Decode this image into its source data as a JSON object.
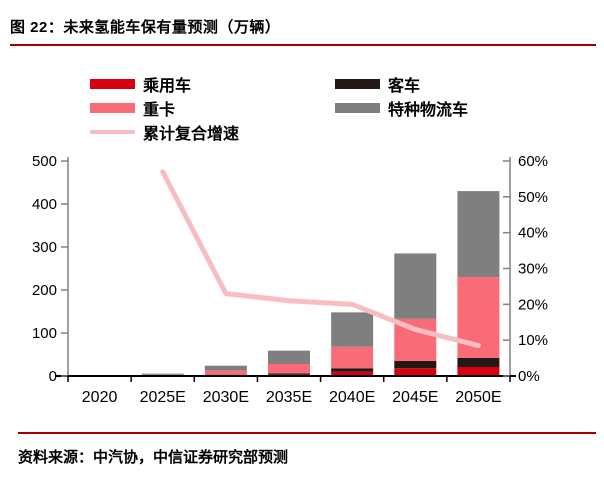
{
  "title": "图 22：未来氢能车保有量预测（万辆）",
  "source": "资料来源：中汽协，中信证券研究部预测",
  "colors": {
    "accent_rule": "#a40000",
    "passenger_car": "#d7000f",
    "bus": "#231815",
    "heavy_truck": "#f96c77",
    "special_logistics": "#7f7f7f",
    "cagr_line": "#f8bdc0",
    "axis_gray": "#808080",
    "axis_black": "#000000"
  },
  "legend": [
    {
      "label": "乘用车",
      "color": "#d7000f",
      "shape": "bar",
      "column": 0
    },
    {
      "label": "客车",
      "color": "#231815",
      "shape": "bar",
      "column": 1
    },
    {
      "label": "重卡",
      "color": "#f96c77",
      "shape": "bar",
      "column": 0
    },
    {
      "label": "特种物流车",
      "color": "#7f7f7f",
      "shape": "bar",
      "column": 1
    },
    {
      "label": "累计复合增速",
      "color": "#f8bdc0",
      "shape": "line",
      "column": 0
    }
  ],
  "chart_data": {
    "type": "bar",
    "subtype": "stacked-bar-with-line",
    "title": "未来氢能车保有量预测（万辆）",
    "categories": [
      "2020",
      "2025E",
      "2030E",
      "2035E",
      "2040E",
      "2045E",
      "2050E"
    ],
    "series": [
      {
        "name": "乘用车",
        "type": "bar",
        "axis": "left",
        "color": "#d7000f",
        "values": [
          0.1,
          0.5,
          1.5,
          3,
          10,
          18,
          21
        ]
      },
      {
        "name": "客车",
        "type": "bar",
        "axis": "left",
        "color": "#231815",
        "values": [
          0.1,
          0.5,
          1.5,
          3,
          8,
          17,
          21
        ]
      },
      {
        "name": "重卡",
        "type": "bar",
        "axis": "left",
        "color": "#f96c77",
        "values": [
          0.5,
          2,
          10,
          22,
          50,
          98,
          188
        ]
      },
      {
        "name": "特种物流车",
        "type": "bar",
        "axis": "left",
        "color": "#7f7f7f",
        "values": [
          0.5,
          2.5,
          11,
          31,
          80,
          152,
          200
        ]
      },
      {
        "name": "累计复合增速",
        "type": "line",
        "axis": "right",
        "color": "#f8bdc0",
        "values": [
          null,
          57,
          23,
          21,
          20,
          13,
          8.5
        ]
      }
    ],
    "left_axis": {
      "min": 0,
      "max": 500,
      "tick_values": [
        0,
        100,
        200,
        300,
        400,
        500
      ],
      "tick_labels": [
        "0",
        "100",
        "200",
        "300",
        "400",
        "500"
      ]
    },
    "right_axis": {
      "min": 0,
      "max": 60,
      "tick_values": [
        0,
        10,
        20,
        30,
        40,
        50,
        60
      ],
      "tick_labels": [
        "0%",
        "10%",
        "20%",
        "30%",
        "40%",
        "50%",
        "60%"
      ]
    },
    "grid": false,
    "legend_position": "top"
  }
}
